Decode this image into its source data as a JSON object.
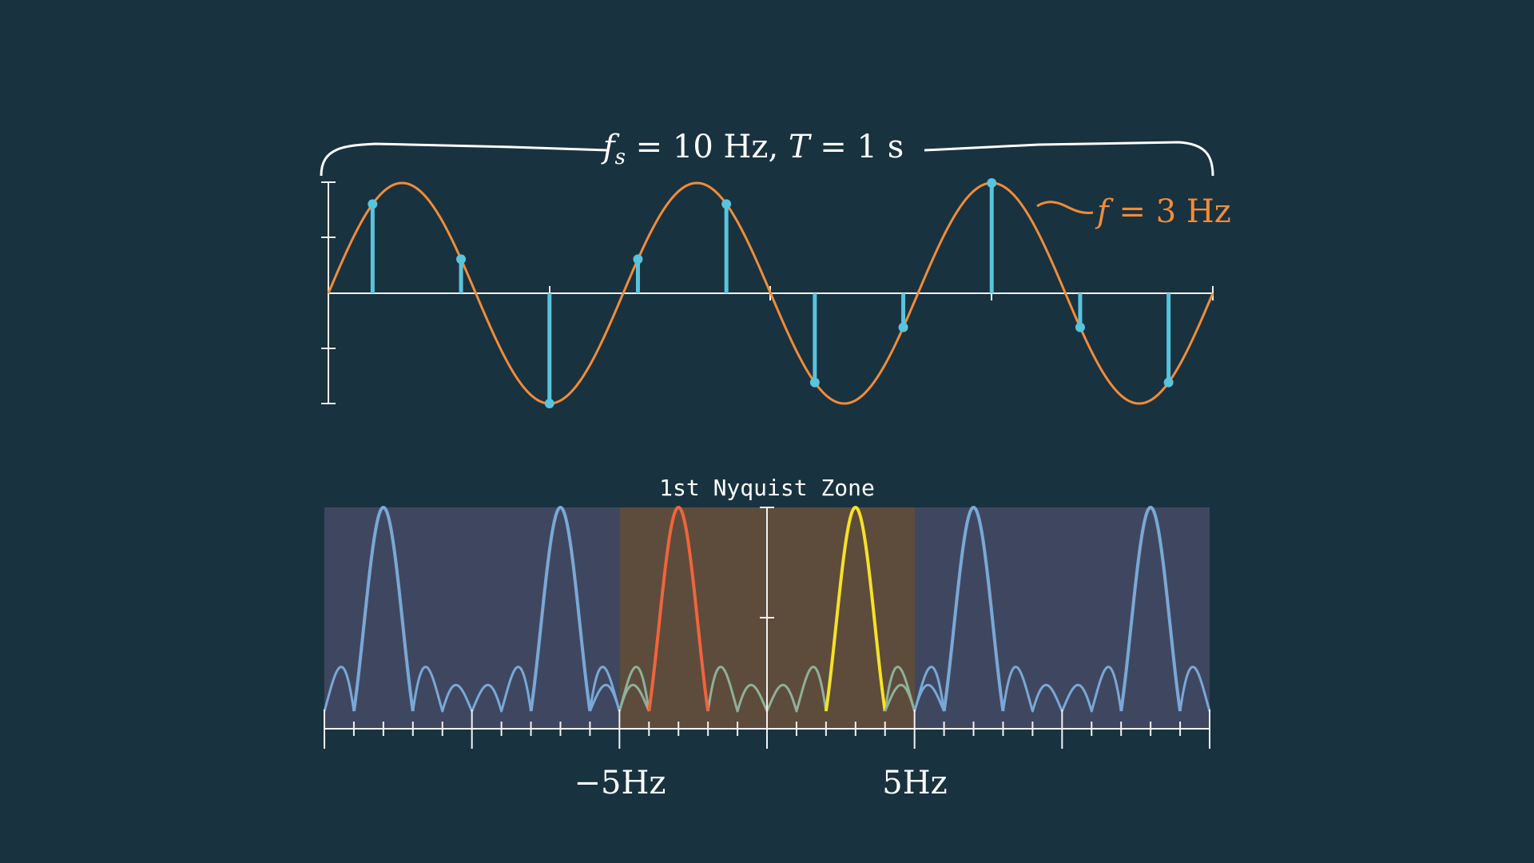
{
  "colors": {
    "background": "#193240",
    "axis": "#f2f2f2",
    "signal": "#f28c38",
    "samples": "#58c4dd",
    "zone_outer": "#3f4760",
    "zone_nyquist": "#5d4c3b",
    "alias_peak": "#7aa8d6",
    "negative_peak": "#f0643c",
    "positive_peak": "#f7e127",
    "sidelobe_inside": "#8fb09a"
  },
  "top": {
    "brace_label": "f_s = 10 Hz,  T = 1 s",
    "signal_label": "f = 3 Hz",
    "signal_frequency_hz": 3,
    "sample_rate_hz": 10,
    "duration_s": 1
  },
  "bottom": {
    "zone_label": "1st Nyquist Zone",
    "tick_labels": [
      "−5Hz",
      "5Hz"
    ],
    "freq_range_hz": [
      -15,
      15
    ],
    "nyquist_zone_hz": [
      -5,
      5
    ],
    "peak_frequencies_hz": [
      -13,
      -7,
      -3,
      3,
      7,
      13
    ]
  }
}
